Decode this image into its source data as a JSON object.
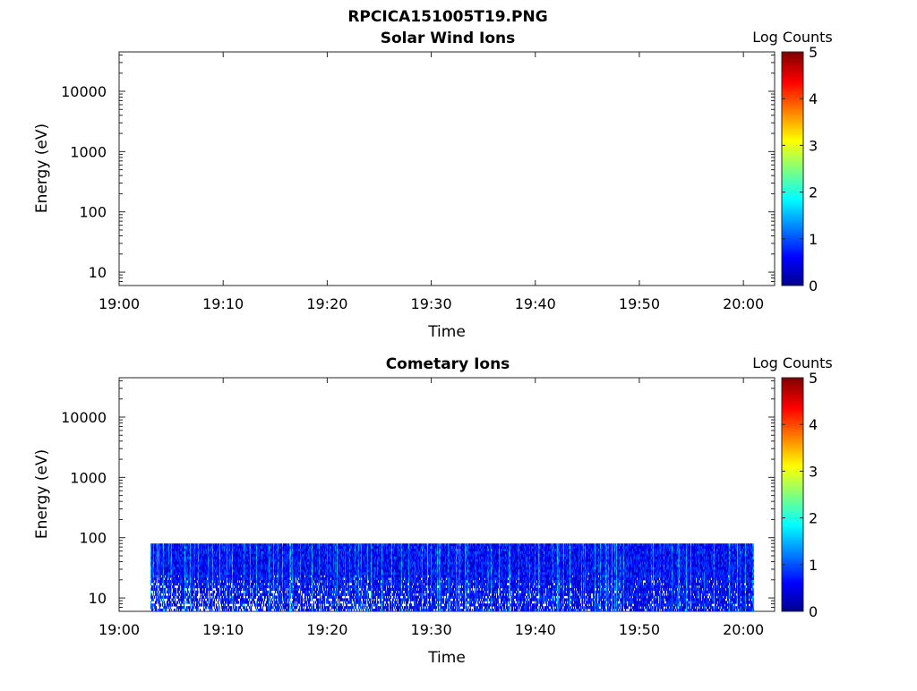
{
  "figure": {
    "title": "RPCICA151005T19.PNG"
  },
  "chart_data": [
    {
      "type": "heatmap",
      "title": "Solar Wind Ions",
      "xlabel": "Time",
      "ylabel": "Energy (eV)",
      "x_ticks": [
        "19:00",
        "19:10",
        "19:20",
        "19:30",
        "19:40",
        "19:50",
        "20:00"
      ],
      "x_range": [
        "19:00",
        "20:03"
      ],
      "y_scale": "log",
      "y_ticks": [
        "10",
        "100",
        "1000",
        "10000"
      ],
      "y_tick_values": [
        10,
        100,
        1000,
        10000
      ],
      "y_range": [
        6,
        45000
      ],
      "colorbar": {
        "label": "Log Counts",
        "ticks": [
          "0",
          "1",
          "2",
          "3",
          "4",
          "5"
        ],
        "range": [
          0,
          5
        ],
        "colormap": "jet"
      },
      "data_extent": null,
      "note_visible_data": "none"
    },
    {
      "type": "heatmap",
      "title": "Cometary Ions",
      "xlabel": "Time",
      "ylabel": "Energy (eV)",
      "x_ticks": [
        "19:00",
        "19:10",
        "19:20",
        "19:30",
        "19:40",
        "19:50",
        "20:00"
      ],
      "x_range": [
        "19:00",
        "20:03"
      ],
      "y_scale": "log",
      "y_ticks": [
        "10",
        "100",
        "1000",
        "10000"
      ],
      "y_tick_values": [
        10,
        100,
        1000,
        10000
      ],
      "y_range": [
        6,
        45000
      ],
      "colorbar": {
        "label": "Log Counts",
        "ticks": [
          "0",
          "1",
          "2",
          "3",
          "4",
          "5"
        ],
        "range": [
          0,
          5
        ],
        "colormap": "jet"
      },
      "data_extent": {
        "time_start": "19:03",
        "time_end": "20:01",
        "energy_min": 6,
        "energy_max": 80
      },
      "typical_level_range": [
        0.2,
        1.8
      ]
    }
  ]
}
